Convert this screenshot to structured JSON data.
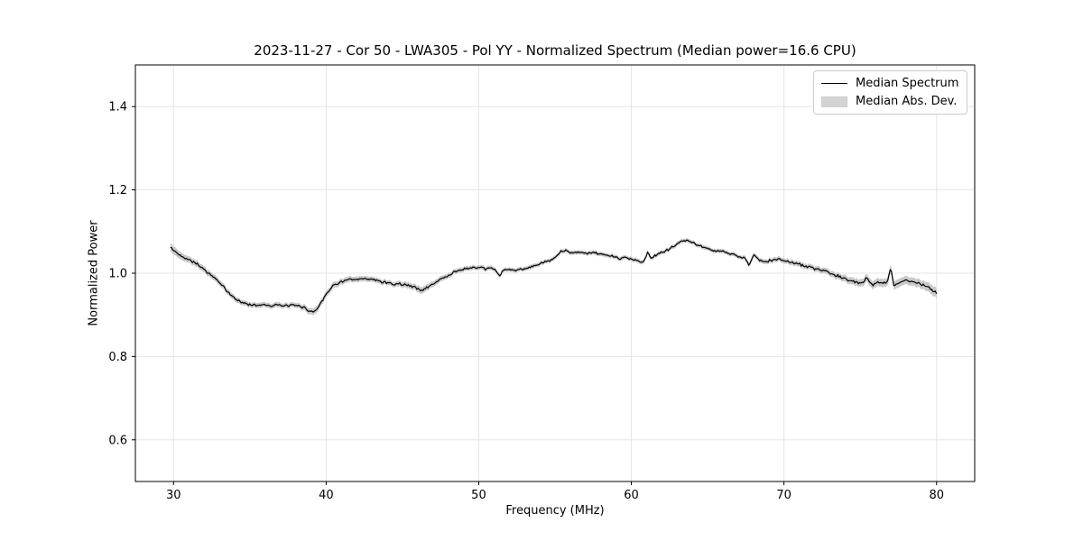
{
  "chart_data": {
    "type": "line",
    "title": "2023-11-27 - Cor 50 - LWA305 - Pol YY - Normalized Spectrum (Median power=16.6 CPU)",
    "xlabel": "Frequency (MHz)",
    "ylabel": "Normalized Power",
    "xlim": [
      27.5,
      82.5
    ],
    "ylim": [
      0.5,
      1.5
    ],
    "xticks": [
      30,
      40,
      50,
      60,
      70,
      80
    ],
    "yticks": [
      0.6,
      0.8,
      1.0,
      1.2,
      1.4
    ],
    "grid": true,
    "legend_position": "upper right",
    "colors": {
      "line": "#000000",
      "band": "#c9c9c9",
      "grid": "#e5e5e5",
      "spine": "#000000",
      "legend_border": "#cccccc"
    },
    "noise_amplitude": 0.0035,
    "series": [
      {
        "name": "Median Spectrum",
        "type": "line",
        "points": [
          [
            29.8,
            1.062
          ],
          [
            30.0,
            1.055
          ],
          [
            30.3,
            1.046
          ],
          [
            30.6,
            1.04
          ],
          [
            31.0,
            1.033
          ],
          [
            31.3,
            1.028
          ],
          [
            31.6,
            1.021
          ],
          [
            32.0,
            1.009
          ],
          [
            32.4,
            0.997
          ],
          [
            32.8,
            0.985
          ],
          [
            33.2,
            0.97
          ],
          [
            33.6,
            0.953
          ],
          [
            34.0,
            0.94
          ],
          [
            34.4,
            0.931
          ],
          [
            34.8,
            0.926
          ],
          [
            35.2,
            0.924
          ],
          [
            35.6,
            0.923
          ],
          [
            36.0,
            0.925
          ],
          [
            36.4,
            0.922
          ],
          [
            36.8,
            0.924
          ],
          [
            37.2,
            0.921
          ],
          [
            37.6,
            0.923
          ],
          [
            38.0,
            0.922
          ],
          [
            38.4,
            0.92
          ],
          [
            38.8,
            0.912
          ],
          [
            39.1,
            0.906
          ],
          [
            39.35,
            0.912
          ],
          [
            39.7,
            0.932
          ],
          [
            40.0,
            0.95
          ],
          [
            40.4,
            0.968
          ],
          [
            40.8,
            0.977
          ],
          [
            41.2,
            0.982
          ],
          [
            41.6,
            0.985
          ],
          [
            42.0,
            0.983
          ],
          [
            42.4,
            0.987
          ],
          [
            42.8,
            0.985
          ],
          [
            43.2,
            0.984
          ],
          [
            43.6,
            0.98
          ],
          [
            44.0,
            0.978
          ],
          [
            44.4,
            0.973
          ],
          [
            44.8,
            0.975
          ],
          [
            45.2,
            0.972
          ],
          [
            45.6,
            0.969
          ],
          [
            46.0,
            0.963
          ],
          [
            46.3,
            0.958
          ],
          [
            46.7,
            0.968
          ],
          [
            47.1,
            0.976
          ],
          [
            47.5,
            0.986
          ],
          [
            48.0,
            0.994
          ],
          [
            48.4,
            1.003
          ],
          [
            48.8,
            1.008
          ],
          [
            49.2,
            1.011
          ],
          [
            49.6,
            1.013
          ],
          [
            50.0,
            1.013
          ],
          [
            50.4,
            1.01
          ],
          [
            50.8,
            1.012
          ],
          [
            51.1,
            1.01
          ],
          [
            51.35,
            0.991
          ],
          [
            51.6,
            1.007
          ],
          [
            52.0,
            1.009
          ],
          [
            52.4,
            1.006
          ],
          [
            52.8,
            1.01
          ],
          [
            53.2,
            1.013
          ],
          [
            53.6,
            1.017
          ],
          [
            54.0,
            1.022
          ],
          [
            54.4,
            1.027
          ],
          [
            54.8,
            1.032
          ],
          [
            55.1,
            1.04
          ],
          [
            55.35,
            1.052
          ],
          [
            55.7,
            1.054
          ],
          [
            56.0,
            1.048
          ],
          [
            56.4,
            1.052
          ],
          [
            56.8,
            1.05
          ],
          [
            57.2,
            1.047
          ],
          [
            57.6,
            1.05
          ],
          [
            58.0,
            1.045
          ],
          [
            58.4,
            1.043
          ],
          [
            58.8,
            1.04
          ],
          [
            59.2,
            1.036
          ],
          [
            59.6,
            1.038
          ],
          [
            60.0,
            1.034
          ],
          [
            60.4,
            1.03
          ],
          [
            60.8,
            1.027
          ],
          [
            61.05,
            1.049
          ],
          [
            61.3,
            1.035
          ],
          [
            61.6,
            1.043
          ],
          [
            61.9,
            1.049
          ],
          [
            62.2,
            1.053
          ],
          [
            62.6,
            1.06
          ],
          [
            63.0,
            1.07
          ],
          [
            63.35,
            1.078
          ],
          [
            63.7,
            1.079
          ],
          [
            64.0,
            1.073
          ],
          [
            64.4,
            1.066
          ],
          [
            64.8,
            1.061
          ],
          [
            65.2,
            1.057
          ],
          [
            65.6,
            1.054
          ],
          [
            66.0,
            1.052
          ],
          [
            66.5,
            1.046
          ],
          [
            67.0,
            1.041
          ],
          [
            67.4,
            1.037
          ],
          [
            67.75,
            1.019
          ],
          [
            68.0,
            1.044
          ],
          [
            68.4,
            1.03
          ],
          [
            68.8,
            1.027
          ],
          [
            69.2,
            1.031
          ],
          [
            69.6,
            1.034
          ],
          [
            70.0,
            1.03
          ],
          [
            70.4,
            1.027
          ],
          [
            70.8,
            1.024
          ],
          [
            71.2,
            1.019
          ],
          [
            71.6,
            1.015
          ],
          [
            72.0,
            1.011
          ],
          [
            72.4,
            1.007
          ],
          [
            72.8,
            1.003
          ],
          [
            73.2,
            0.998
          ],
          [
            73.6,
            0.992
          ],
          [
            74.0,
            0.986
          ],
          [
            74.4,
            0.981
          ],
          [
            74.8,
            0.978
          ],
          [
            75.1,
            0.977
          ],
          [
            75.45,
            0.989
          ],
          [
            75.8,
            0.97
          ],
          [
            76.1,
            0.979
          ],
          [
            76.5,
            0.977
          ],
          [
            76.8,
            0.981
          ],
          [
            77.0,
            1.014
          ],
          [
            77.2,
            0.969
          ],
          [
            77.5,
            0.977
          ],
          [
            77.9,
            0.984
          ],
          [
            78.3,
            0.981
          ],
          [
            78.7,
            0.976
          ],
          [
            79.1,
            0.972
          ],
          [
            79.5,
            0.965
          ],
          [
            79.8,
            0.958
          ],
          [
            80.0,
            0.952
          ]
        ]
      },
      {
        "name": "Median Abs. Dev.",
        "type": "band_halfwidth",
        "points": [
          [
            29.8,
            0.01
          ],
          [
            31,
            0.008
          ],
          [
            33,
            0.007
          ],
          [
            35,
            0.006
          ],
          [
            38,
            0.006
          ],
          [
            39.2,
            0.008
          ],
          [
            41,
            0.007
          ],
          [
            44,
            0.006
          ],
          [
            46.3,
            0.008
          ],
          [
            48,
            0.006
          ],
          [
            52,
            0.005
          ],
          [
            56,
            0.005
          ],
          [
            60,
            0.005
          ],
          [
            63.5,
            0.005
          ],
          [
            67,
            0.005
          ],
          [
            70,
            0.006
          ],
          [
            73,
            0.007
          ],
          [
            75,
            0.009
          ],
          [
            77,
            0.01
          ],
          [
            79,
            0.01
          ],
          [
            80,
            0.012
          ]
        ]
      }
    ]
  }
}
